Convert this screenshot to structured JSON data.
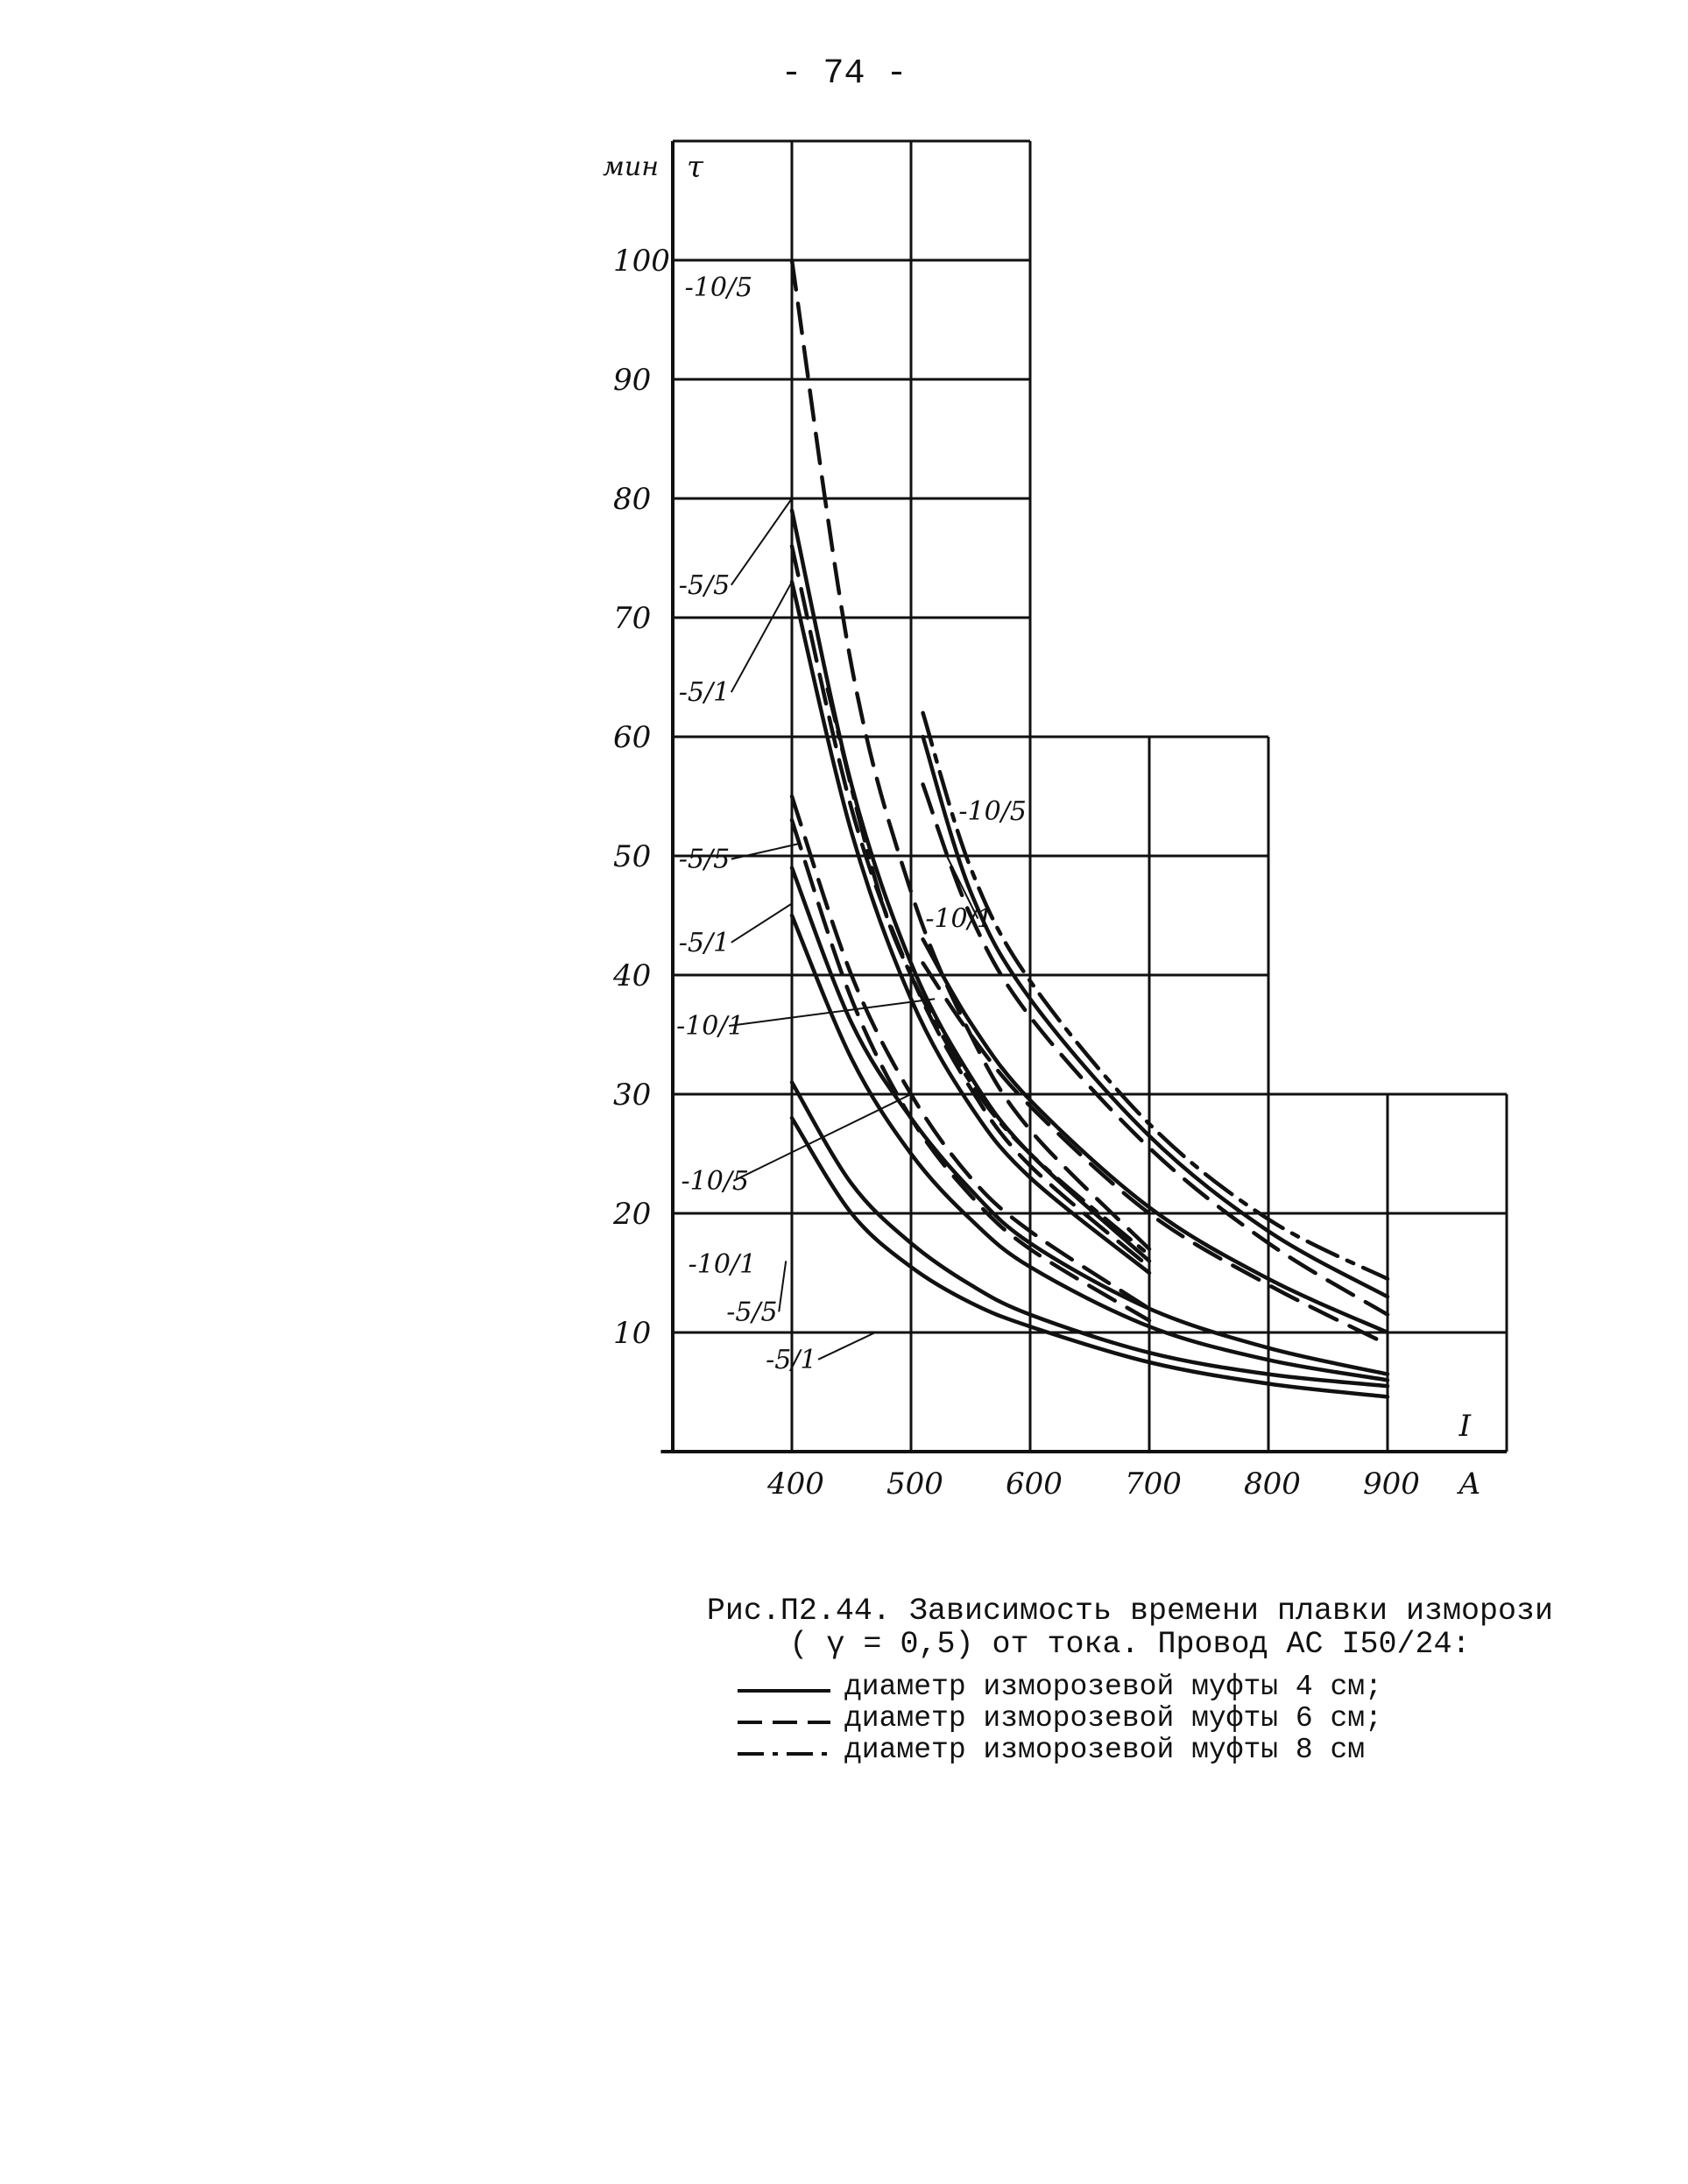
{
  "page_number": "- 74 -",
  "chart_data": {
    "type": "line",
    "title": "",
    "xlabel": "I",
    "x_unit": "A",
    "ylabel": "τ",
    "y_unit": "мин",
    "x_ticks": [
      "400",
      "500",
      "600",
      "700",
      "800",
      "900"
    ],
    "y_ticks": [
      "10",
      "20",
      "30",
      "40",
      "50",
      "60",
      "70",
      "80",
      "90",
      "100"
    ],
    "xlim": [
      300,
      1000
    ],
    "ylim": [
      0,
      110
    ],
    "grid": true,
    "line_styles": {
      "4cm": "solid",
      "6cm": "dashed",
      "8cm": "dashdot"
    },
    "series": [
      {
        "name": "-5/1",
        "style": "4cm",
        "x": [
          400,
          450,
          500,
          550,
          600,
          700,
          800,
          900
        ],
        "y": [
          28,
          20,
          15.5,
          12.5,
          10.5,
          7.5,
          5.7,
          4.6
        ]
      },
      {
        "name": "-5/5",
        "style": "4cm",
        "x": [
          400,
          450,
          500,
          550,
          600,
          700,
          800,
          900
        ],
        "y": [
          31,
          22.5,
          17.5,
          14,
          11.5,
          8.3,
          6.5,
          5.5
        ]
      },
      {
        "name": "-10/1",
        "style": "4cm",
        "x": [
          400,
          450,
          500,
          550,
          600,
          700,
          800,
          900
        ],
        "y": [
          45,
          33,
          25,
          19.5,
          15.5,
          10.5,
          7.7,
          6
        ]
      },
      {
        "name": "-10/5",
        "style": "4cm",
        "x": [
          400,
          450,
          500,
          550,
          600,
          700,
          800,
          900
        ],
        "y": [
          49,
          36,
          28,
          22,
          17.5,
          12,
          8.7,
          6.5
        ]
      },
      {
        "name": "-5/1",
        "style": "4cm",
        "x": [
          400,
          450,
          500,
          550,
          600,
          700
        ],
        "y": [
          73,
          52,
          38,
          29,
          23,
          15
        ]
      },
      {
        "name": "-5/5",
        "style": "4cm",
        "x": [
          400,
          450,
          500,
          550,
          600,
          700
        ],
        "y": [
          79,
          56,
          41,
          31.5,
          25,
          16
        ]
      },
      {
        "name": "-10/1",
        "style": "4cm",
        "x": [
          510,
          550,
          600,
          700,
          800,
          900
        ],
        "y": [
          43,
          36,
          29.5,
          20.5,
          14.5,
          10
        ]
      },
      {
        "name": "-10/5",
        "style": "4cm",
        "x": [
          510,
          550,
          600,
          700,
          800,
          900
        ],
        "y": [
          60,
          47,
          38,
          26.5,
          18.5,
          13
        ]
      },
      {
        "name": "-5/1",
        "style": "6cm",
        "x": [
          400,
          450,
          500,
          550,
          600,
          700
        ],
        "y": [
          53,
          38,
          28,
          21.5,
          17,
          11
        ]
      },
      {
        "name": "-5/5",
        "style": "6cm",
        "x": [
          400,
          450,
          500,
          550,
          600,
          700
        ],
        "y": [
          55,
          40,
          30,
          23,
          18.5,
          12
        ]
      },
      {
        "name": "-5/1",
        "style": "6cm",
        "x": [
          400,
          450,
          500,
          550,
          600,
          700
        ],
        "y": [
          76,
          54,
          40,
          30.5,
          24,
          15.5
        ]
      },
      {
        "name": "-10/5",
        "style": "6cm",
        "x": [
          400,
          450,
          500,
          550,
          600,
          700
        ],
        "y": [
          100,
          66,
          47,
          35,
          27,
          17
        ]
      },
      {
        "name": "-10/1",
        "style": "6cm",
        "x": [
          510,
          550,
          600,
          700,
          800,
          900
        ],
        "y": [
          41,
          35,
          29,
          20,
          14,
          9
        ]
      },
      {
        "name": "-10/5",
        "style": "6cm",
        "x": [
          510,
          550,
          600,
          700,
          800,
          900
        ],
        "y": [
          56,
          45,
          36.5,
          25.5,
          17.5,
          11.5
        ]
      },
      {
        "name": "-5/5",
        "style": "8cm",
        "x": [
          430,
          470,
          500,
          550,
          600,
          700
        ],
        "y": [
          64,
          48,
          40,
          31,
          25,
          16.5
        ]
      },
      {
        "name": "-10/5",
        "style": "8cm",
        "x": [
          510,
          550,
          600,
          700,
          800,
          900
        ],
        "y": [
          62,
          49,
          39.5,
          27.5,
          19.5,
          14.5
        ]
      }
    ],
    "curve_labels": [
      "-10/5",
      "-5/5",
      "-5/1",
      "-5/5",
      "-5/1",
      "-10/1",
      "-10/5",
      "-10/1",
      "-5/5",
      "-5/1",
      "-10/5",
      "-10/1"
    ]
  },
  "caption": {
    "line1": "Рис.П2.44. Зависимость времени плавки изморози",
    "line2": "( γ = 0,5) от тока. Провод АС І50/24:",
    "legend": [
      {
        "style": "solid",
        "text": "диаметр изморозевой муфты 4 см;"
      },
      {
        "style": "dashed",
        "text": "диаметр изморозевой муфты 6 см;"
      },
      {
        "style": "dashdot",
        "text": "диаметр изморозевой муфты 8 см"
      }
    ]
  }
}
